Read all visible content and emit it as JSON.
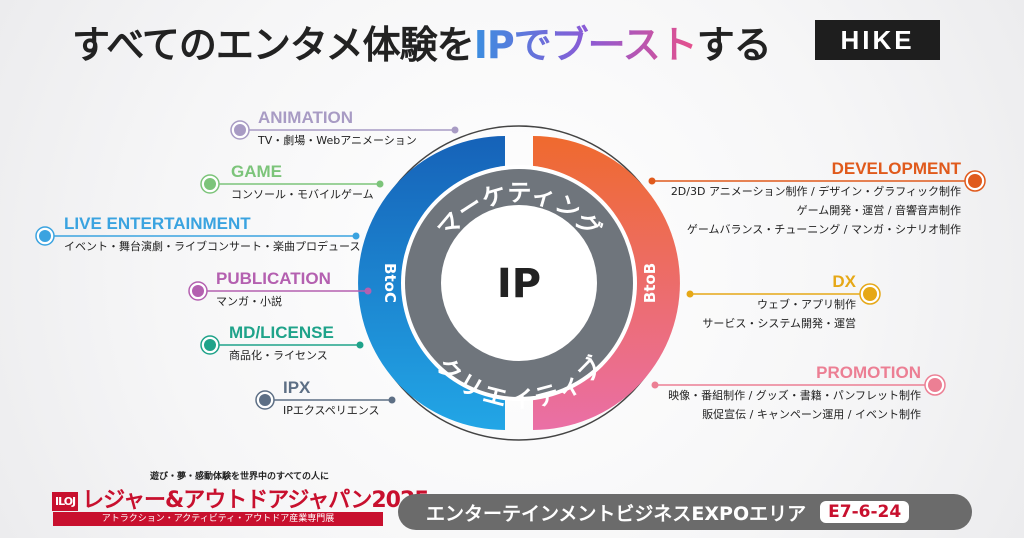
{
  "header": {
    "title_pre": "すべてのエンタメ体験を",
    "title_ip": "IPでブースト",
    "title_post": "する",
    "logo": "HIKE"
  },
  "diagram": {
    "center": "IP",
    "ring_top": "マーケティング",
    "ring_bottom": "クリエイティブ",
    "left_label": "BtoC",
    "right_label": "BtoB",
    "colors": {
      "btoc": "#1f78c8",
      "btob_top": "#ef6a2e",
      "btob_bottom": "#ea6fa6",
      "inner_ring": "#6f757c"
    },
    "btoc": [
      {
        "title": "ANIMATION",
        "desc": "TV・劇場・Webアニメーション",
        "color": "#a89bc4"
      },
      {
        "title": "GAME",
        "desc": "コンソール・モバイルゲーム",
        "color": "#7cc47a"
      },
      {
        "title": "LIVE ENTERTAINMENT",
        "desc": "イベント・舞台演劇・ライブコンサート・楽曲プロデュース",
        "color": "#3aa3e0"
      },
      {
        "title": "PUBLICATION",
        "desc": "マンガ・小説",
        "color": "#b460b0"
      },
      {
        "title": "MD/LICENSE",
        "desc": "商品化・ライセンス",
        "color": "#1fa38a"
      },
      {
        "title": "IPX",
        "desc": "IPエクスペリエンス",
        "color": "#5d6f85"
      }
    ],
    "btob": [
      {
        "title": "DEVELOPMENT",
        "lines": [
          "2D/3D アニメーション制作 / デザイン・グラフィック制作",
          "ゲーム開発・運営 / 音響音声制作",
          "ゲームバランス・チューニング / マンガ・シナリオ制作"
        ],
        "color": "#e05a1c"
      },
      {
        "title": "DX",
        "lines": [
          "ウェブ・アプリ制作",
          "サービス・システム開発・運営"
        ],
        "color": "#e6a817"
      },
      {
        "title": "PROMOTION",
        "lines": [
          "映像・番組制作 / グッズ・書籍・パンフレット制作",
          "販促宣伝 / キャンペーン運用 / イベント制作"
        ],
        "color": "#ec7f94"
      }
    ]
  },
  "footer": {
    "expo_tagline": "遊び・夢・感動体験を世界中のすべての人に",
    "expo_badge": "ILOJ",
    "expo_name": "レジャー&アウトドアジャパン2025",
    "expo_sub": "アトラクション・アクティビティ・アウトドア産業専門展",
    "area": "エンターテインメントビジネスEXPOエリア",
    "booth": "E7-6-24"
  }
}
